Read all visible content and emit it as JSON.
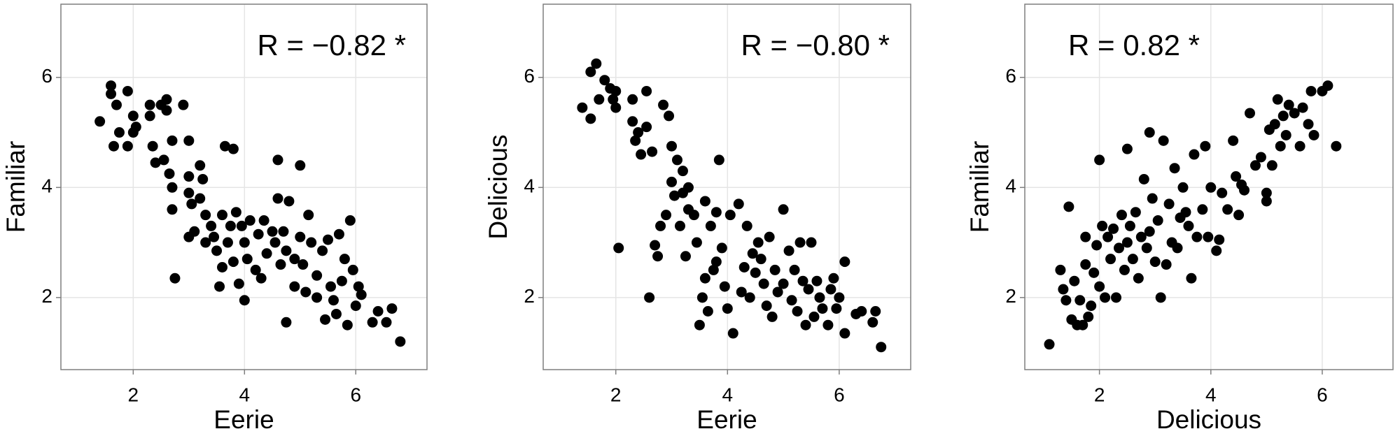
{
  "chart_data": [
    {
      "type": "scatter",
      "xlabel": "Eerie",
      "ylabel": "Familiar",
      "annotation": "R = −0.82 *",
      "annotation_position": "top-right",
      "color": "#000000",
      "grid": true,
      "xlim": [
        0.7,
        7.28
      ],
      "ylim": [
        0.69,
        7.33
      ],
      "xticks": [
        2,
        4,
        6
      ],
      "yticks": [
        2,
        4,
        6
      ],
      "x": [
        1.4,
        1.6,
        1.6,
        1.7,
        1.65,
        1.75,
        1.9,
        1.9,
        2.0,
        2.0,
        2.05,
        2.3,
        2.3,
        2.35,
        2.4,
        2.5,
        2.6,
        2.6,
        2.55,
        2.7,
        2.65,
        2.7,
        2.7,
        2.75,
        2.9,
        3.0,
        3.0,
        3.0,
        3.05,
        3.1,
        3.0,
        3.2,
        3.2,
        3.25,
        3.3,
        3.3,
        3.4,
        3.45,
        3.5,
        3.55,
        3.6,
        3.6,
        3.65,
        3.7,
        3.75,
        3.8,
        3.8,
        3.85,
        3.9,
        3.95,
        4.0,
        4.0,
        4.05,
        4.1,
        4.2,
        4.25,
        4.3,
        4.35,
        4.4,
        4.5,
        4.55,
        4.6,
        4.6,
        4.65,
        4.7,
        4.75,
        4.75,
        4.8,
        4.9,
        4.9,
        5.0,
        5.0,
        5.05,
        5.1,
        5.15,
        5.2,
        5.3,
        5.3,
        5.4,
        5.45,
        5.5,
        5.55,
        5.6,
        5.65,
        5.7,
        5.75,
        5.8,
        5.85,
        5.9,
        5.95,
        6.0,
        6.05,
        6.1,
        6.3,
        6.4,
        6.55,
        6.65,
        6.8
      ],
      "values": [
        5.2,
        5.85,
        5.7,
        5.5,
        4.75,
        5.0,
        5.75,
        4.75,
        5.3,
        5.0,
        5.1,
        5.5,
        5.3,
        4.75,
        4.45,
        5.5,
        5.6,
        5.4,
        4.5,
        4.85,
        4.25,
        4.0,
        3.6,
        2.35,
        5.5,
        4.85,
        4.2,
        3.9,
        3.7,
        3.2,
        3.1,
        4.4,
        3.8,
        4.15,
        3.5,
        3.0,
        3.3,
        3.1,
        2.85,
        2.2,
        2.55,
        3.5,
        4.75,
        3.0,
        3.3,
        2.65,
        4.7,
        3.55,
        2.25,
        3.3,
        1.95,
        3.0,
        2.7,
        3.4,
        2.5,
        3.15,
        2.35,
        3.4,
        2.8,
        3.2,
        3.0,
        4.5,
        3.8,
        2.6,
        3.2,
        1.55,
        2.85,
        3.75,
        2.7,
        2.2,
        4.4,
        3.1,
        2.6,
        2.1,
        3.5,
        3.0,
        2.0,
        2.4,
        2.85,
        1.6,
        3.05,
        2.2,
        1.95,
        1.7,
        3.15,
        2.3,
        2.7,
        1.5,
        3.4,
        2.5,
        1.85,
        2.2,
        2.05,
        1.55,
        1.75,
        1.55,
        1.8,
        1.2
      ]
    },
    {
      "type": "scatter",
      "xlabel": "Eerie",
      "ylabel": "Delicious",
      "annotation": "R = −0.80 *",
      "annotation_position": "top-right",
      "color": "#000000",
      "grid": true,
      "xlim": [
        0.7,
        7.28
      ],
      "ylim": [
        0.69,
        7.33
      ],
      "xticks": [
        2,
        4,
        6
      ],
      "yticks": [
        2,
        4,
        6
      ],
      "x": [
        1.4,
        1.55,
        1.55,
        1.65,
        1.7,
        1.8,
        1.9,
        1.95,
        2.0,
        2.0,
        2.05,
        2.3,
        2.3,
        2.35,
        2.4,
        2.45,
        2.55,
        2.55,
        2.6,
        2.65,
        2.7,
        2.75,
        2.8,
        2.85,
        2.9,
        2.95,
        3.0,
        3.0,
        3.05,
        3.1,
        3.15,
        3.2,
        3.2,
        3.25,
        3.3,
        3.3,
        3.4,
        3.45,
        3.5,
        3.55,
        3.6,
        3.6,
        3.65,
        3.7,
        3.75,
        3.8,
        3.8,
        3.85,
        3.9,
        3.95,
        4.0,
        4.05,
        4.1,
        4.2,
        4.25,
        4.3,
        4.35,
        4.4,
        4.45,
        4.5,
        4.55,
        4.6,
        4.65,
        4.7,
        4.75,
        4.8,
        4.85,
        4.9,
        5.0,
        5.0,
        5.1,
        5.15,
        5.2,
        5.25,
        5.3,
        5.35,
        5.4,
        5.45,
        5.5,
        5.55,
        5.6,
        5.65,
        5.7,
        5.8,
        5.85,
        5.9,
        5.95,
        6.0,
        6.1,
        6.1,
        6.3,
        6.4,
        6.6,
        6.65,
        6.75
      ],
      "values": [
        5.45,
        5.25,
        6.1,
        6.25,
        5.6,
        5.95,
        5.8,
        5.6,
        5.75,
        5.45,
        2.9,
        5.6,
        5.2,
        4.85,
        5.0,
        4.6,
        5.75,
        5.1,
        2.0,
        4.65,
        2.95,
        2.75,
        3.3,
        5.5,
        3.5,
        5.3,
        4.75,
        4.1,
        3.85,
        4.5,
        3.3,
        4.3,
        3.9,
        2.75,
        4.0,
        3.6,
        3.5,
        3.0,
        1.5,
        2.0,
        3.75,
        2.35,
        1.75,
        3.3,
        2.5,
        2.65,
        3.55,
        4.5,
        2.9,
        2.2,
        1.8,
        3.5,
        1.35,
        3.7,
        2.1,
        2.55,
        3.3,
        2.0,
        2.8,
        2.45,
        3.0,
        2.7,
        2.25,
        1.85,
        3.1,
        1.65,
        2.5,
        2.1,
        3.6,
        2.25,
        2.85,
        1.95,
        2.5,
        1.75,
        3.0,
        2.3,
        1.5,
        2.15,
        3.0,
        1.65,
        2.3,
        2.0,
        1.8,
        1.5,
        2.15,
        2.35,
        1.8,
        2.0,
        1.35,
        2.65,
        1.7,
        1.75,
        1.55,
        1.75,
        1.1
      ]
    },
    {
      "type": "scatter",
      "xlabel": "Delicious",
      "ylabel": "Familiar",
      "annotation": "R = 0.82 *",
      "annotation_position": "top-left",
      "color": "#000000",
      "grid": true,
      "xlim": [
        0.66,
        7.27
      ],
      "ylim": [
        0.69,
        7.33
      ],
      "xticks": [
        2,
        4,
        6
      ],
      "yticks": [
        2,
        4,
        6
      ],
      "x": [
        1.1,
        1.3,
        1.35,
        1.4,
        1.45,
        1.5,
        1.55,
        1.6,
        1.65,
        1.7,
        1.75,
        1.75,
        1.8,
        1.85,
        1.9,
        1.95,
        2.0,
        2.0,
        2.05,
        2.1,
        2.15,
        2.2,
        2.25,
        2.3,
        2.35,
        2.4,
        2.45,
        2.5,
        2.5,
        2.55,
        2.6,
        2.65,
        2.7,
        2.75,
        2.8,
        2.85,
        2.9,
        2.9,
        2.95,
        3.0,
        3.05,
        3.1,
        3.15,
        3.2,
        3.25,
        3.3,
        3.35,
        3.4,
        3.45,
        3.5,
        3.55,
        3.6,
        3.65,
        3.7,
        3.75,
        3.85,
        3.9,
        3.95,
        4.0,
        4.1,
        4.15,
        4.2,
        4.3,
        4.4,
        4.45,
        4.5,
        4.55,
        4.6,
        4.7,
        4.8,
        4.9,
        5.0,
        5.0,
        5.05,
        5.1,
        5.15,
        5.2,
        5.25,
        5.3,
        5.35,
        5.4,
        5.5,
        5.6,
        5.65,
        5.75,
        5.8,
        5.85,
        6.0,
        6.1,
        6.25
      ],
      "values": [
        1.15,
        2.5,
        2.15,
        1.95,
        3.65,
        1.6,
        2.3,
        1.5,
        1.95,
        1.5,
        3.1,
        2.6,
        1.65,
        1.85,
        2.45,
        2.95,
        4.5,
        2.2,
        3.3,
        2.0,
        3.1,
        2.7,
        3.25,
        2.0,
        2.9,
        3.5,
        2.5,
        3.0,
        4.7,
        3.3,
        2.7,
        3.55,
        2.35,
        3.1,
        4.15,
        2.9,
        3.2,
        5.0,
        3.8,
        2.65,
        3.4,
        2.0,
        4.85,
        2.6,
        3.7,
        3.0,
        4.35,
        2.9,
        3.45,
        4.0,
        3.55,
        3.3,
        2.35,
        4.6,
        3.1,
        3.6,
        4.75,
        3.1,
        4.0,
        2.85,
        3.05,
        3.9,
        3.6,
        4.85,
        4.2,
        3.5,
        4.05,
        3.95,
        5.35,
        4.4,
        4.55,
        3.75,
        3.9,
        5.05,
        4.4,
        5.15,
        5.6,
        4.75,
        5.3,
        4.95,
        5.5,
        5.35,
        4.75,
        5.45,
        5.15,
        5.75,
        4.95,
        5.75,
        5.85,
        4.75
      ]
    }
  ]
}
